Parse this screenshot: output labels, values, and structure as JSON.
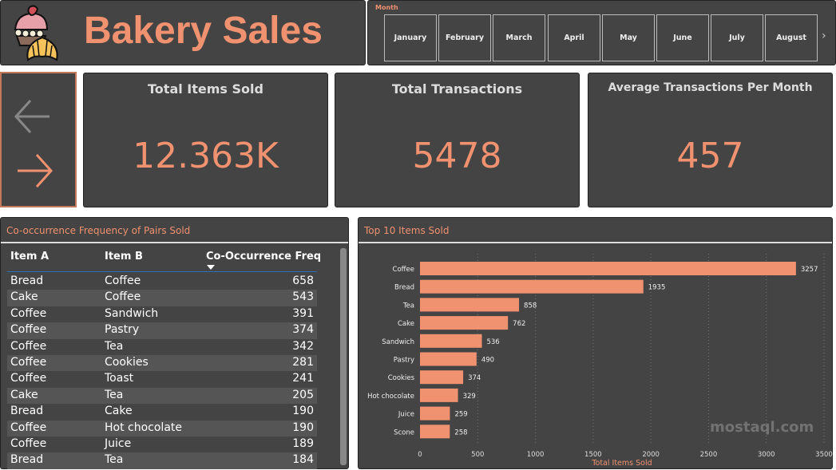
{
  "header": {
    "title": "Bakery Sales",
    "logo": "cupcake-croissant-logo"
  },
  "slicer": {
    "label": "Month",
    "months": [
      "January",
      "February",
      "March",
      "April",
      "May",
      "June",
      "July",
      "August"
    ]
  },
  "kpis": [
    {
      "title": "Total Items Sold",
      "value": "12.363K"
    },
    {
      "title": "Total Transactions",
      "value": "5478"
    },
    {
      "title": "Average Transactions Per Month",
      "value": "457"
    }
  ],
  "table": {
    "title": "Co-occurrence Frequency of Pairs Sold",
    "columns": [
      "Item A",
      "Item B",
      "Co-Occurrence Freq"
    ],
    "rows": [
      [
        "Bread",
        "Coffee",
        "658"
      ],
      [
        "Cake",
        "Coffee",
        "543"
      ],
      [
        "Coffee",
        "Sandwich",
        "391"
      ],
      [
        "Coffee",
        "Pastry",
        "374"
      ],
      [
        "Coffee",
        "Tea",
        "342"
      ],
      [
        "Coffee",
        "Cookies",
        "281"
      ],
      [
        "Coffee",
        "Toast",
        "241"
      ],
      [
        "Cake",
        "Tea",
        "205"
      ],
      [
        "Bread",
        "Cake",
        "190"
      ],
      [
        "Coffee",
        "Hot chocolate",
        "190"
      ],
      [
        "Coffee",
        "Juice",
        "189"
      ],
      [
        "Bread",
        "Tea",
        "184"
      ]
    ]
  },
  "colors": {
    "accent": "#F0916F",
    "panel": "#444444",
    "sort_line": "#2F6FB5"
  },
  "chart_data": {
    "type": "bar",
    "orientation": "horizontal",
    "title": "Top 10 Items Sold",
    "xlabel": "Total Items Sold",
    "ylabel": "",
    "categories": [
      "Coffee",
      "Bread",
      "Tea",
      "Cake",
      "Sandwich",
      "Pastry",
      "Cookies",
      "Hot chocolate",
      "Juice",
      "Scone"
    ],
    "values": [
      3257,
      1935,
      858,
      762,
      536,
      490,
      374,
      329,
      259,
      258
    ],
    "xlim": [
      0,
      3500
    ],
    "xticks": [
      0,
      500,
      1000,
      1500,
      2000,
      2500,
      3000,
      3500
    ],
    "grid": true
  },
  "watermark": "mostaql.com"
}
